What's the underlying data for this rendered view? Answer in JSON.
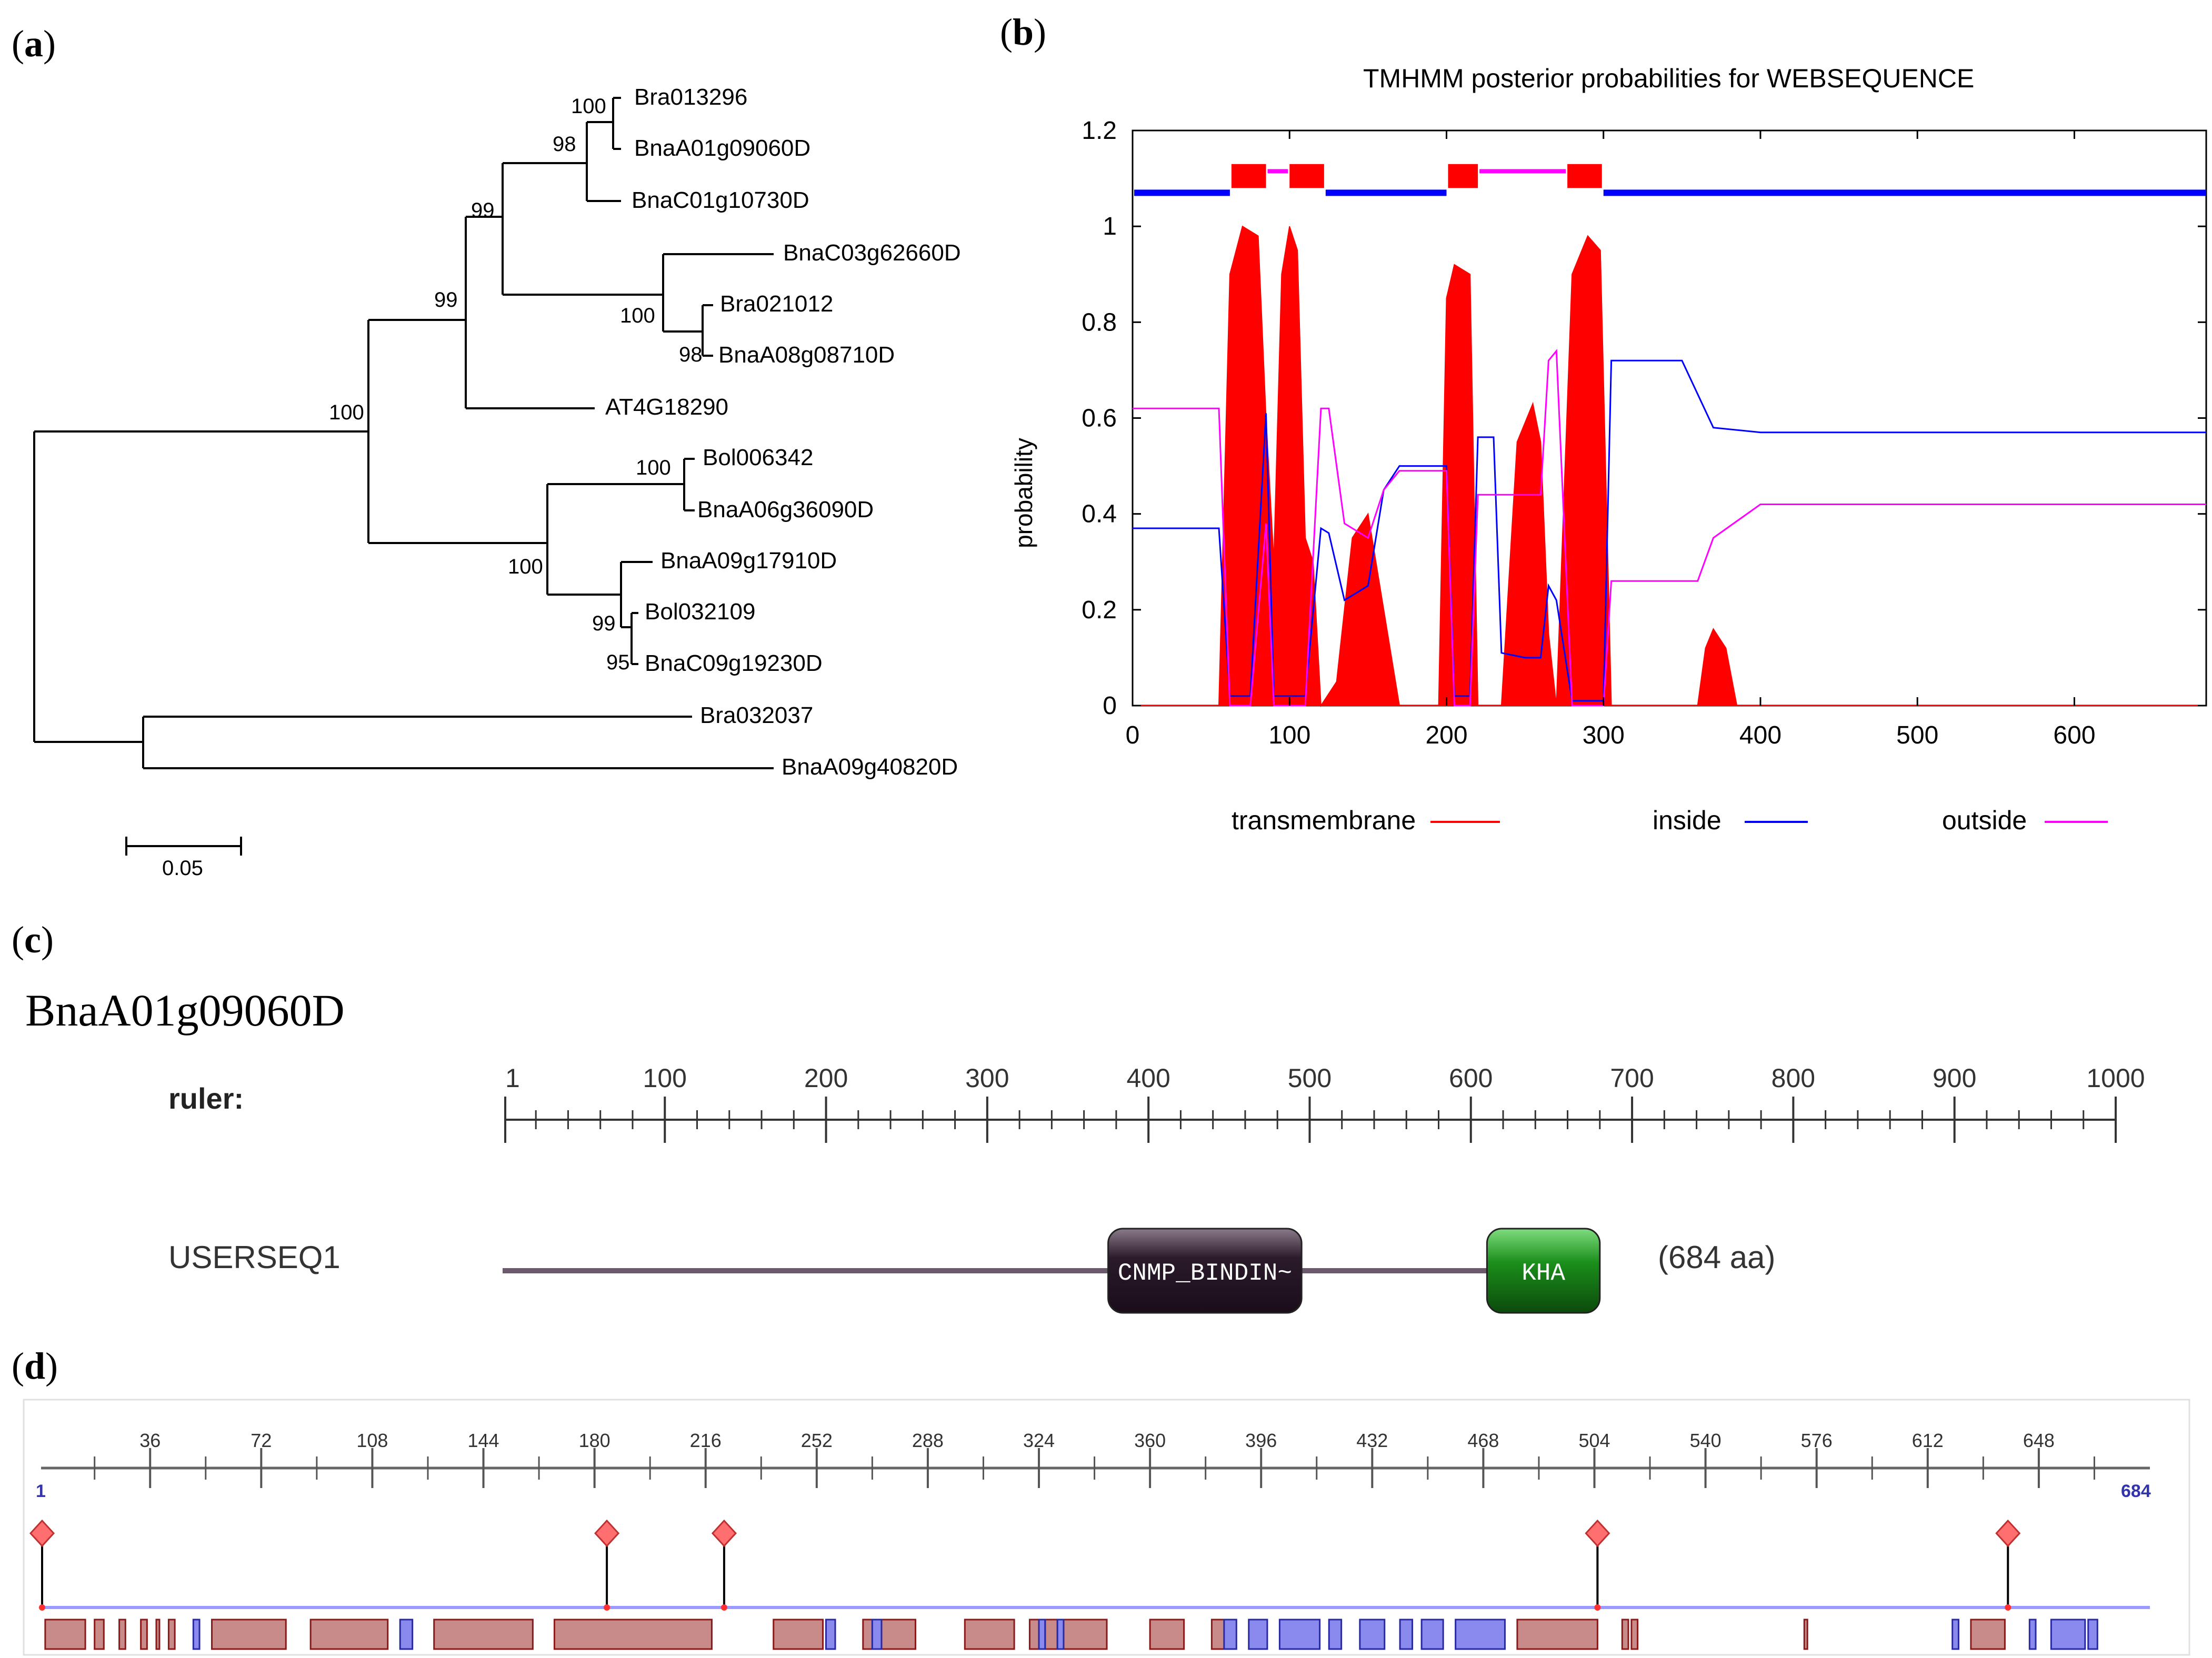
{
  "panels": {
    "a": {
      "label": "a"
    },
    "b": {
      "label": "b"
    },
    "c": {
      "label": "c"
    },
    "d": {
      "label": "d"
    }
  },
  "tree": {
    "leaves": [
      "Bra013296",
      "BnaA01g09060D",
      "BnaC01g10730D",
      "BnaC03g62660D",
      "Bra021012",
      "BnaA08g08710D",
      "AT4G18290",
      "Bol006342",
      "BnaA06g36090D",
      "BnaA09g17910D",
      "Bol032109",
      "BnaC09g19230D",
      "Bra032037",
      "BnaA09g40820D"
    ],
    "bootstraps": [
      "100",
      "98",
      "99",
      "99",
      "100",
      "98",
      "100",
      "100",
      "100",
      "99",
      "95"
    ],
    "scale_label": "0.05"
  },
  "tmhmm": {
    "title": "TMHMM posterior probabilities for WEBSEQUENCE",
    "ylabel": "probability",
    "yticks": [
      "0",
      "0.2",
      "0.4",
      "0.6",
      "0.8",
      "1",
      "1.2"
    ],
    "xticks": [
      "0",
      "100",
      "200",
      "300",
      "400",
      "500",
      "600"
    ],
    "legend": [
      "transmembrane",
      "inside",
      "outside"
    ],
    "colors": {
      "transmembrane": "#ff0000",
      "inside": "#0000ff",
      "outside": "#ff00ff"
    }
  },
  "chart_data": {
    "type": "area",
    "title": "TMHMM posterior probabilities for WEBSEQUENCE",
    "xlabel": "",
    "ylabel": "probability",
    "xlim": [
      0,
      684
    ],
    "ylim": [
      0,
      1.2
    ],
    "series": [
      {
        "name": "transmembrane",
        "x": [
          0,
          55,
          62,
          70,
          80,
          85,
          90,
          95,
          100,
          105,
          110,
          115,
          120,
          130,
          140,
          150,
          160,
          170,
          195,
          200,
          205,
          215,
          220,
          235,
          245,
          255,
          260,
          265,
          270,
          280,
          290,
          298,
          305,
          360,
          365,
          370,
          378,
          385,
          684
        ],
        "y": [
          0,
          0,
          0.9,
          1.0,
          0.98,
          0.6,
          0.3,
          0.9,
          1.0,
          0.95,
          0.35,
          0.3,
          0,
          0.05,
          0.35,
          0.4,
          0.2,
          0,
          0,
          0.85,
          0.92,
          0.9,
          0,
          0,
          0.55,
          0.63,
          0.55,
          0.15,
          0,
          0.9,
          0.98,
          0.95,
          0,
          0,
          0.12,
          0.16,
          0.12,
          0,
          0
        ]
      },
      {
        "name": "inside",
        "x": [
          0,
          55,
          62,
          75,
          85,
          90,
          95,
          110,
          120,
          125,
          135,
          150,
          160,
          170,
          180,
          200,
          205,
          215,
          220,
          230,
          235,
          250,
          260,
          265,
          270,
          280,
          300,
          305,
          350,
          360,
          370,
          400,
          684
        ],
        "y": [
          0.37,
          0.37,
          0.02,
          0.02,
          0.61,
          0.02,
          0.02,
          0.02,
          0.37,
          0.36,
          0.22,
          0.25,
          0.45,
          0.5,
          0.5,
          0.5,
          0.02,
          0.02,
          0.56,
          0.56,
          0.11,
          0.1,
          0.1,
          0.25,
          0.22,
          0.01,
          0.01,
          0.72,
          0.72,
          0.65,
          0.58,
          0.57,
          0.57
        ]
      },
      {
        "name": "outside",
        "x": [
          0,
          55,
          62,
          75,
          85,
          90,
          95,
          110,
          120,
          125,
          135,
          150,
          160,
          170,
          180,
          200,
          205,
          215,
          220,
          230,
          235,
          250,
          260,
          265,
          270,
          280,
          300,
          305,
          350,
          360,
          370,
          400,
          684
        ],
        "y": [
          0.62,
          0.62,
          0.0,
          0.0,
          0.38,
          0.0,
          0.0,
          0.0,
          0.62,
          0.62,
          0.38,
          0.35,
          0.45,
          0.49,
          0.49,
          0.49,
          0.0,
          0.0,
          0.44,
          0.44,
          0.44,
          0.44,
          0.44,
          0.72,
          0.74,
          0.0,
          0.0,
          0.26,
          0.26,
          0.26,
          0.35,
          0.42,
          0.42
        ]
      }
    ],
    "topology_segments": [
      {
        "type": "inside",
        "from": 1,
        "to": 62
      },
      {
        "type": "TMhelix",
        "from": 63,
        "to": 85
      },
      {
        "type": "outside",
        "from": 86,
        "to": 99
      },
      {
        "type": "TMhelix",
        "from": 100,
        "to": 122
      },
      {
        "type": "inside",
        "from": 123,
        "to": 200
      },
      {
        "type": "TMhelix",
        "from": 201,
        "to": 220
      },
      {
        "type": "outside",
        "from": 221,
        "to": 276
      },
      {
        "type": "TMhelix",
        "from": 277,
        "to": 299
      },
      {
        "type": "inside",
        "from": 300,
        "to": 684
      }
    ]
  },
  "domains": {
    "gene_title": "BnaA01g09060D",
    "ruler_label": "ruler:",
    "ruler_ticks": [
      "1",
      "100",
      "200",
      "300",
      "400",
      "500",
      "600",
      "700",
      "800",
      "900",
      "1000"
    ],
    "seq_name": "USERSEQ1",
    "length_label": "(684 aa)",
    "protein_length": 684,
    "boxes": [
      {
        "name": "CNMP_BINDIN~",
        "start": 375,
        "end": 495,
        "color": "#3b2a3b"
      },
      {
        "name": "KHA",
        "start": 610,
        "end": 680,
        "color": "#1f8a1f"
      }
    ]
  },
  "features": {
    "ticks": [
      "36",
      "72",
      "108",
      "144",
      "180",
      "216",
      "252",
      "288",
      "324",
      "360",
      "396",
      "432",
      "468",
      "504",
      "540",
      "576",
      "612",
      "648"
    ],
    "start_label": "1",
    "end_label": "684",
    "sites": [
      1,
      184,
      222,
      505,
      638
    ],
    "red_blocks": [
      [
        2,
        15
      ],
      [
        18,
        21
      ],
      [
        26,
        28
      ],
      [
        33,
        35
      ],
      [
        38,
        39
      ],
      [
        42,
        44
      ],
      [
        56,
        80
      ],
      [
        88,
        113
      ],
      [
        128,
        160
      ],
      [
        167,
        218
      ],
      [
        238,
        254
      ],
      [
        267,
        270
      ],
      [
        273,
        284
      ],
      [
        300,
        316
      ],
      [
        321,
        324
      ],
      [
        326,
        330
      ],
      [
        332,
        346
      ],
      [
        360,
        371
      ],
      [
        380,
        386
      ],
      [
        407,
        414
      ],
      [
        479,
        505
      ],
      [
        513,
        515
      ],
      [
        516,
        518
      ],
      [
        572,
        573
      ],
      [
        626,
        637
      ]
    ],
    "blue_blocks": [
      [
        50,
        52
      ],
      [
        117,
        121
      ],
      [
        255,
        258
      ],
      [
        270,
        273
      ],
      [
        324,
        326
      ],
      [
        330,
        332
      ],
      [
        384,
        388
      ],
      [
        392,
        398
      ],
      [
        402,
        415
      ],
      [
        418,
        422
      ],
      [
        428,
        436
      ],
      [
        441,
        445
      ],
      [
        448,
        455
      ],
      [
        459,
        475
      ],
      [
        620,
        622
      ],
      [
        645,
        647
      ],
      [
        652,
        663
      ],
      [
        664,
        667
      ]
    ]
  }
}
